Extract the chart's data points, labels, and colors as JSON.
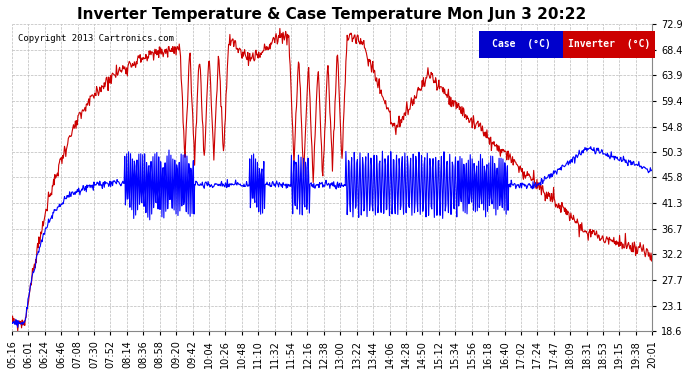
{
  "title": "Inverter Temperature & Case Temperature Mon Jun 3 20:22",
  "copyright": "Copyright 2013 Cartronics.com",
  "legend_case_label": "Case  (°C)",
  "legend_inverter_label": "Inverter  (°C)",
  "case_color": "#0000ff",
  "inverter_color": "#cc0000",
  "background_color": "#ffffff",
  "grid_color": "#bbbbbb",
  "ylim": [
    18.6,
    72.9
  ],
  "yticks": [
    18.6,
    23.1,
    27.7,
    32.2,
    36.7,
    41.3,
    45.8,
    50.3,
    54.8,
    59.4,
    63.9,
    68.4,
    72.9
  ],
  "xlabel_rotation": 90,
  "title_fontsize": 11,
  "tick_fontsize": 7,
  "xtick_labels": [
    "05:16",
    "06:01",
    "06:24",
    "06:46",
    "07:08",
    "07:30",
    "07:52",
    "08:14",
    "08:36",
    "08:58",
    "09:20",
    "09:42",
    "10:04",
    "10:26",
    "10:48",
    "11:10",
    "11:32",
    "11:54",
    "12:16",
    "12:38",
    "13:00",
    "13:22",
    "13:44",
    "14:06",
    "14:28",
    "14:50",
    "15:12",
    "15:34",
    "15:56",
    "16:18",
    "16:40",
    "17:02",
    "17:24",
    "17:47",
    "18:09",
    "18:31",
    "18:53",
    "19:15",
    "19:38",
    "20:01"
  ]
}
